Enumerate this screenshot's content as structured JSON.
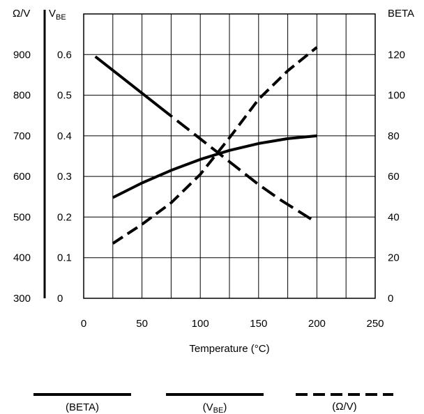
{
  "chart_data": {
    "type": "line",
    "xlabel": "Temperature (°C)",
    "x_axis": {
      "range": [
        0,
        250
      ],
      "ticks": [
        "0",
        "50",
        "100",
        "150",
        "200",
        "250"
      ]
    },
    "axes": {
      "ohm_per_volt": {
        "title": "Ω/V",
        "range": [
          300,
          1000
        ],
        "ticks": [
          "300",
          "400",
          "500",
          "600",
          "700",
          "800",
          "900"
        ]
      },
      "vbe": {
        "title_main": "V",
        "title_sub": "BE",
        "range": [
          0,
          0.7
        ],
        "ticks": [
          "0",
          "0.1",
          "0.2",
          "0.3",
          "0.4",
          "0.5",
          "0.6"
        ]
      },
      "beta": {
        "title": "BETA",
        "range": [
          0,
          140
        ],
        "ticks": [
          "0",
          "20",
          "40",
          "60",
          "80",
          "100",
          "120"
        ]
      }
    },
    "grid": true,
    "series": [
      {
        "name": "(BETA)",
        "axis": "beta",
        "line_style": "solid-dashed",
        "x": [
          10,
          30,
          50,
          70,
          90,
          110,
          130,
          150,
          170,
          195
        ],
        "values": [
          119,
          110,
          101,
          92,
          83,
          74,
          65,
          56,
          48,
          39
        ]
      },
      {
        "name_main": "(V",
        "name_sub": "BE",
        "name_end": ")",
        "axis": "vbe",
        "line_style": "solid",
        "x": [
          25,
          50,
          75,
          100,
          125,
          150,
          175,
          200
        ],
        "values": [
          0.248,
          0.284,
          0.315,
          0.342,
          0.364,
          0.381,
          0.393,
          0.4
        ]
      },
      {
        "name": "(Ω/V)",
        "axis": "ohm_per_volt",
        "line_style": "dashed",
        "x": [
          25,
          50,
          75,
          100,
          125,
          150,
          175,
          200
        ],
        "values": [
          435,
          482,
          535,
          605,
          695,
          790,
          860,
          918
        ]
      }
    ],
    "legend": "bottom",
    "legend_items": {
      "beta": "(BETA)",
      "vbe_main": "(V",
      "vbe_sub": "BE",
      "vbe_end": ")",
      "ohm": "(Ω/V)"
    }
  }
}
